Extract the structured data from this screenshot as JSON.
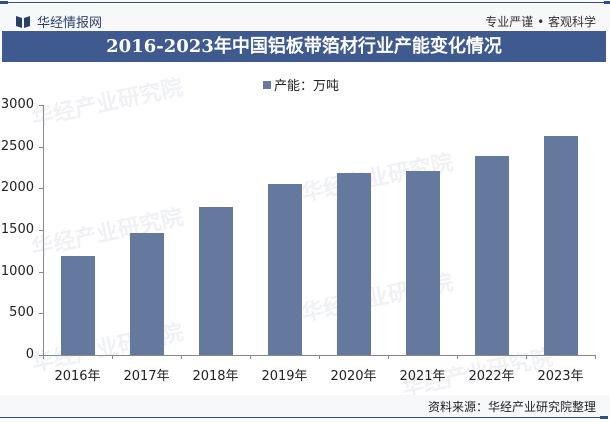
{
  "header": {
    "brand": "华经情报网",
    "slogan": "专业严谨 • 客观科学"
  },
  "title": "2016-2023年中国铝板带箔材行业产能变化情况",
  "legend": {
    "label": "产能：万吨",
    "color": "#65799f"
  },
  "footer": {
    "source": "资料来源：华经产业研究院整理"
  },
  "watermark": {
    "text": "华经产业研究院",
    "url": "www.huaon.com"
  },
  "chart_data": {
    "type": "bar",
    "title": "2016-2023年中国铝板带箔材行业产能变化情况",
    "categories": [
      "2016年",
      "2017年",
      "2018年",
      "2019年",
      "2020年",
      "2021年",
      "2022年",
      "2023年"
    ],
    "series": [
      {
        "name": "产能：万吨",
        "values": [
          1190,
          1460,
          1780,
          2050,
          2180,
          2210,
          2390,
          2630
        ],
        "color": "#65799f"
      }
    ],
    "xlabel": "",
    "ylabel": "",
    "ylim": [
      0,
      3000
    ],
    "yticks": [
      "0",
      "500",
      "1000",
      "1500",
      "2000",
      "2500",
      "3000"
    ],
    "grid": false,
    "legend_position": "top"
  }
}
